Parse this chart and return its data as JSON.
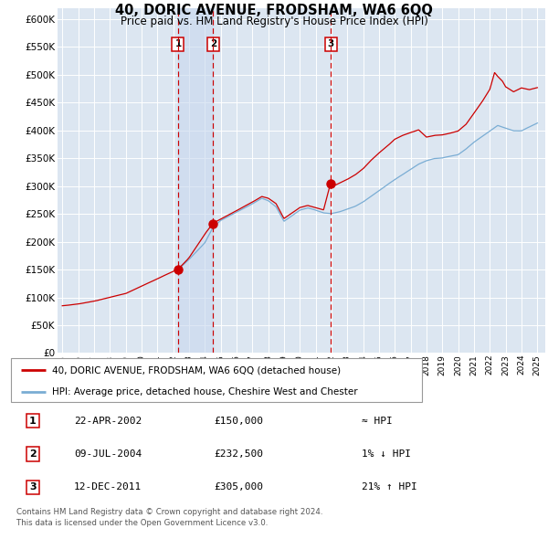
{
  "title": "40, DORIC AVENUE, FRODSHAM, WA6 6QQ",
  "subtitle": "Price paid vs. HM Land Registry's House Price Index (HPI)",
  "legend_line1": "40, DORIC AVENUE, FRODSHAM, WA6 6QQ (detached house)",
  "legend_line2": "HPI: Average price, detached house, Cheshire West and Chester",
  "hpi_color": "#7aadd4",
  "price_color": "#cc0000",
  "bg_color": "#dce6f1",
  "grid_color": "#ffffff",
  "sale_points": [
    {
      "date_num": 2002.31,
      "price": 150000,
      "label": "1"
    },
    {
      "date_num": 2004.52,
      "price": 232500,
      "label": "2"
    },
    {
      "date_num": 2011.95,
      "price": 305000,
      "label": "3"
    }
  ],
  "vline_dates": [
    2002.31,
    2004.52,
    2011.95
  ],
  "table_data": [
    [
      "1",
      "22-APR-2002",
      "£150,000",
      "≈ HPI"
    ],
    [
      "2",
      "09-JUL-2004",
      "£232,500",
      "1% ↓ HPI"
    ],
    [
      "3",
      "12-DEC-2011",
      "£305,000",
      "21% ↑ HPI"
    ]
  ],
  "footnote": "Contains HM Land Registry data © Crown copyright and database right 2024.\nThis data is licensed under the Open Government Licence v3.0.",
  "ylim": [
    0,
    620000
  ],
  "ytick_step": 50000,
  "xmin": 1994.7,
  "xmax": 2025.5
}
